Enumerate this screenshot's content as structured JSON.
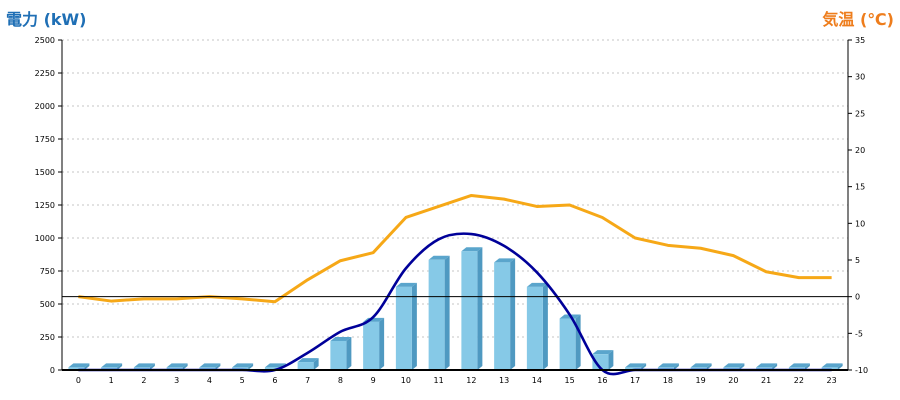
{
  "chart_data": {
    "type": "bar",
    "title": "",
    "ylabel": "電力 (kW)",
    "ylabel_right": "気温 (℃)",
    "colors": {
      "ylabel_left": "#1f6fb5",
      "ylabel_right": "#ee7d1c",
      "bar": "#86c9e7",
      "bar_side": "#4f99c1",
      "bar_top": "#5aa5cc",
      "power_line": "#000099",
      "temp_line": "#f6a817"
    },
    "categories": [
      "0",
      "1",
      "2",
      "3",
      "4",
      "5",
      "6",
      "7",
      "8",
      "9",
      "10",
      "11",
      "12",
      "13",
      "14",
      "15",
      "16",
      "17",
      "18",
      "19",
      "20",
      "21",
      "22",
      "23"
    ],
    "ylim": [
      0,
      2500
    ],
    "ylim_right": [
      -10,
      35
    ],
    "yticks": [
      0,
      250,
      500,
      750,
      1000,
      1250,
      1500,
      1750,
      2000,
      2250,
      2500
    ],
    "yticks_right": [
      -10,
      -5,
      0,
      5,
      10,
      15,
      20,
      25,
      30,
      35
    ],
    "zero_line_right": 0,
    "grid": true,
    "series": [
      {
        "kind": "bar",
        "values": [
          20,
          20,
          20,
          20,
          20,
          20,
          20,
          60,
          220,
          365,
          630,
          835,
          900,
          815,
          630,
          390,
          120,
          20,
          20,
          20,
          20,
          20,
          20,
          20
        ]
      },
      {
        "kind": "line",
        "axis": "left",
        "values": [
          0,
          0,
          0,
          0,
          0,
          0,
          0,
          130,
          290,
          400,
          770,
          990,
          1030,
          940,
          740,
          420,
          0,
          0,
          0,
          0,
          0,
          0,
          0,
          0
        ]
      },
      {
        "kind": "line",
        "axis": "right",
        "values": [
          0,
          -0.6,
          -0.3,
          -0.3,
          0,
          -0.3,
          -0.7,
          2.3,
          4.9,
          6.0,
          10.8,
          12.3,
          13.8,
          13.3,
          12.3,
          12.5,
          10.8,
          8.0,
          7.0,
          6.6,
          5.6,
          3.4,
          2.6,
          2.6
        ]
      }
    ]
  }
}
